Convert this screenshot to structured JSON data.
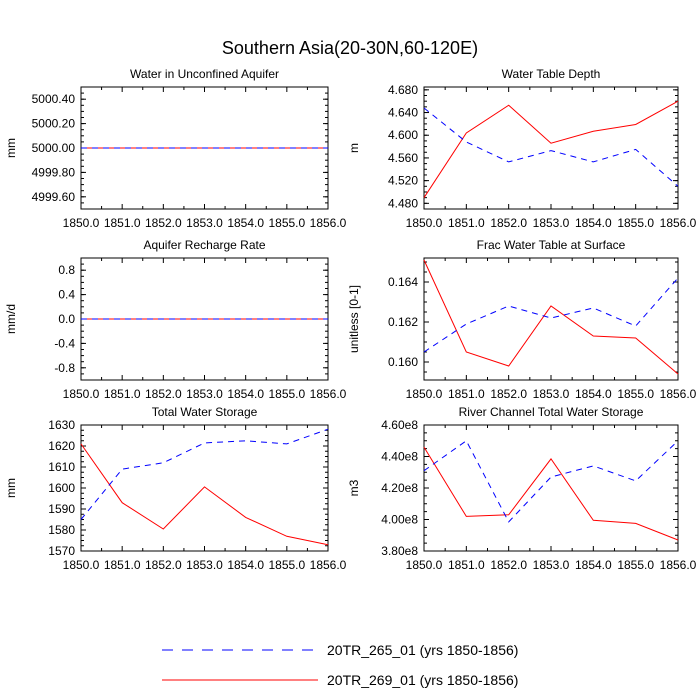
{
  "title": "Southern Asia(20-30N,60-120E)",
  "legend": [
    {
      "label": "20TR_265_01 (yrs 1850-1856)",
      "color": "#0000ff",
      "dash": "dashed"
    },
    {
      "label": "20TR_269_01 (yrs 1850-1856)",
      "color": "#ff0000",
      "dash": "solid"
    }
  ],
  "chart_data": [
    {
      "type": "line",
      "title": "Water in Unconfined Aquifer",
      "ylabel": "mm",
      "ylim": [
        4999.5,
        5000.5
      ],
      "x": [
        1850,
        1851,
        1852,
        1853,
        1854,
        1855,
        1856
      ],
      "xticks": [
        "1850.0",
        "1851.0",
        "1852.0",
        "1853.0",
        "1854.0",
        "1855.0",
        "1856.0"
      ],
      "yticks": [
        {
          "v": 4999.6,
          "t": "4999.60"
        },
        {
          "v": 4999.8,
          "t": "4999.80"
        },
        {
          "v": 5000.0,
          "t": "5000.00"
        },
        {
          "v": 5000.2,
          "t": "5000.20"
        },
        {
          "v": 5000.4,
          "t": "5000.40"
        }
      ],
      "series": [
        {
          "name": "20TR_265_01",
          "values": [
            5000,
            5000,
            5000,
            5000,
            5000,
            5000,
            5000
          ]
        },
        {
          "name": "20TR_269_01",
          "values": [
            5000,
            5000,
            5000,
            5000,
            5000,
            5000,
            5000
          ]
        }
      ]
    },
    {
      "type": "line",
      "title": "Water Table Depth",
      "ylabel": "m",
      "ylim": [
        4.47,
        4.685
      ],
      "x": [
        1850,
        1851,
        1852,
        1853,
        1854,
        1855,
        1856
      ],
      "xticks": [
        "1850.0",
        "1851.0",
        "1852.0",
        "1853.0",
        "1854.0",
        "1855.0",
        "1856.0"
      ],
      "yticks": [
        {
          "v": 4.48,
          "t": "4.480"
        },
        {
          "v": 4.52,
          "t": "4.520"
        },
        {
          "v": 4.56,
          "t": "4.560"
        },
        {
          "v": 4.6,
          "t": "4.600"
        },
        {
          "v": 4.64,
          "t": "4.640"
        },
        {
          "v": 4.68,
          "t": "4.680"
        }
      ],
      "series": [
        {
          "name": "20TR_265_01",
          "values": [
            4.648,
            4.588,
            4.553,
            4.573,
            4.553,
            4.575,
            4.51
          ]
        },
        {
          "name": "20TR_269_01",
          "values": [
            4.49,
            4.604,
            4.653,
            4.586,
            4.607,
            4.619,
            4.66
          ]
        }
      ]
    },
    {
      "type": "line",
      "title": "Aquifer Recharge Rate",
      "ylabel": "mm/d",
      "ylim": [
        -1.0,
        1.0
      ],
      "x": [
        1850,
        1851,
        1852,
        1853,
        1854,
        1855,
        1856
      ],
      "xticks": [
        "1850.0",
        "1851.0",
        "1852.0",
        "1853.0",
        "1854.0",
        "1855.0",
        "1856.0"
      ],
      "yticks": [
        {
          "v": -0.8,
          "t": "-0.8"
        },
        {
          "v": -0.4,
          "t": "-0.4"
        },
        {
          "v": 0.0,
          "t": "0.0"
        },
        {
          "v": 0.4,
          "t": "0.4"
        },
        {
          "v": 0.8,
          "t": "0.8"
        }
      ],
      "series": [
        {
          "name": "20TR_265_01",
          "values": [
            0,
            0,
            0,
            0,
            0,
            0,
            0
          ]
        },
        {
          "name": "20TR_269_01",
          "values": [
            0,
            0,
            0,
            0,
            0,
            0,
            0
          ]
        }
      ]
    },
    {
      "type": "line",
      "title": "Frac Water Table at Surface",
      "ylabel": "unitless [0-1]",
      "ylim": [
        0.1591,
        0.1652
      ],
      "x": [
        1850,
        1851,
        1852,
        1853,
        1854,
        1855,
        1856
      ],
      "xticks": [
        "1850.0",
        "1851.0",
        "1852.0",
        "1853.0",
        "1854.0",
        "1855.0",
        "1856.0"
      ],
      "yticks": [
        {
          "v": 0.16,
          "t": "0.160"
        },
        {
          "v": 0.162,
          "t": "0.162"
        },
        {
          "v": 0.164,
          "t": "0.164"
        }
      ],
      "series": [
        {
          "name": "20TR_265_01",
          "values": [
            0.1605,
            0.1619,
            0.1628,
            0.1622,
            0.1627,
            0.1618,
            0.1642
          ]
        },
        {
          "name": "20TR_269_01",
          "values": [
            0.1651,
            0.1605,
            0.1598,
            0.1628,
            0.1613,
            0.1612,
            0.1594
          ]
        }
      ]
    },
    {
      "type": "line",
      "title": "Total Water Storage",
      "ylabel": "mm",
      "ylim": [
        1570,
        1630
      ],
      "x": [
        1850,
        1851,
        1852,
        1853,
        1854,
        1855,
        1856
      ],
      "xticks": [
        "1850.0",
        "1851.0",
        "1852.0",
        "1853.0",
        "1854.0",
        "1855.0",
        "1856.0"
      ],
      "yticks": [
        {
          "v": 1570,
          "t": "1570"
        },
        {
          "v": 1580,
          "t": "1580"
        },
        {
          "v": 1590,
          "t": "1590"
        },
        {
          "v": 1600,
          "t": "1600"
        },
        {
          "v": 1610,
          "t": "1610"
        },
        {
          "v": 1620,
          "t": "1620"
        },
        {
          "v": 1630,
          "t": "1630"
        }
      ],
      "series": [
        {
          "name": "20TR_265_01",
          "values": [
            1585,
            1609,
            1612,
            1621.5,
            1622.5,
            1621,
            1628
          ]
        },
        {
          "name": "20TR_269_01",
          "values": [
            1621,
            1593,
            1580.5,
            1600.5,
            1586,
            1577,
            1573
          ]
        }
      ]
    },
    {
      "type": "line",
      "title": "River Channel Total Water Storage",
      "ylabel": "m3",
      "ylim": [
        380000000.0,
        460000000.0
      ],
      "x": [
        1850,
        1851,
        1852,
        1853,
        1854,
        1855,
        1856
      ],
      "xticks": [
        "1850.0",
        "1851.0",
        "1852.0",
        "1853.0",
        "1854.0",
        "1855.0",
        "1856.0"
      ],
      "yticks": [
        {
          "v": 380000000.0,
          "t": "3.80e8"
        },
        {
          "v": 400000000.0,
          "t": "4.00e8"
        },
        {
          "v": 420000000.0,
          "t": "4.20e8"
        },
        {
          "v": 440000000.0,
          "t": "4.40e8"
        },
        {
          "v": 460000000.0,
          "t": "4.60e8"
        }
      ],
      "series": [
        {
          "name": "20TR_265_01",
          "values": [
            431000000.0,
            450000000.0,
            398500000.0,
            427000000.0,
            434000000.0,
            424500000.0,
            450000000.0
          ]
        },
        {
          "name": "20TR_269_01",
          "values": [
            446000000.0,
            402000000.0,
            403000000.0,
            438500000.0,
            399500000.0,
            397500000.0,
            387000000.0
          ]
        }
      ]
    }
  ]
}
